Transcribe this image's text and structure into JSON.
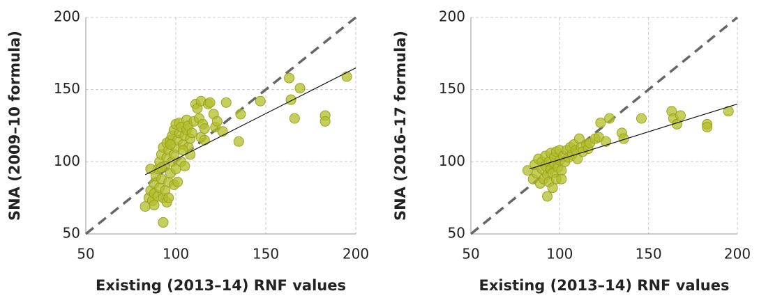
{
  "chart_data": [
    {
      "type": "scatter",
      "x_label": "Existing (2013–14) RNF values",
      "y_label": "SNA (2009–10 formula)",
      "color": "#b3bd2b",
      "xlim": [
        50,
        200
      ],
      "ylim": [
        50,
        200
      ],
      "xticks": [
        50,
        100,
        150,
        200
      ],
      "yticks": [
        50,
        100,
        150,
        200
      ],
      "grid": true,
      "x": [
        83,
        85,
        86,
        87,
        88,
        88,
        89,
        90,
        90,
        91,
        91,
        92,
        92,
        93,
        93,
        93,
        94,
        94,
        95,
        95,
        95,
        96,
        96,
        97,
        97,
        98,
        98,
        99,
        99,
        99,
        100,
        100,
        100,
        101,
        101,
        102,
        102,
        103,
        103,
        104,
        105,
        105,
        106,
        106,
        107,
        107,
        108,
        108,
        109,
        110,
        111,
        112,
        113,
        114,
        114,
        115,
        116,
        116,
        118,
        119,
        121,
        122,
        123,
        126,
        128,
        135,
        136,
        147,
        163,
        164,
        166,
        169,
        183,
        183,
        195,
        86,
        88,
        92,
        96,
        97,
        104
      ],
      "values": [
        69,
        75,
        80,
        73,
        78,
        85,
        90,
        76,
        95,
        82,
        100,
        88,
        105,
        75,
        110,
        58,
        80,
        97,
        72,
        103,
        113,
        86,
        108,
        92,
        115,
        100,
        118,
        84,
        105,
        122,
        95,
        110,
        126,
        86,
        115,
        120,
        127,
        100,
        124,
        112,
        97,
        118,
        122,
        129,
        110,
        125,
        105,
        116,
        120,
        128,
        140,
        137,
        130,
        117,
        142,
        126,
        123,
        115,
        140,
        141,
        133,
        124,
        128,
        121,
        141,
        114,
        133,
        142,
        158,
        143,
        130,
        151,
        132,
        128,
        159,
        95,
        70,
        96,
        75,
        112,
        108
      ],
      "trendline": {
        "x": [
          83,
          200
        ],
        "y": [
          91,
          165
        ]
      }
    },
    {
      "type": "scatter",
      "x_label": "Existing (2013–14) RNF values",
      "y_label": "SNA (2016–17 formula)",
      "color": "#b3bd2b",
      "xlim": [
        50,
        200
      ],
      "ylim": [
        50,
        200
      ],
      "xticks": [
        50,
        100,
        150,
        200
      ],
      "yticks": [
        50,
        100,
        150,
        200
      ],
      "grid": true,
      "x": [
        82,
        85,
        86,
        87,
        88,
        89,
        90,
        90,
        91,
        92,
        92,
        93,
        93,
        94,
        94,
        95,
        95,
        96,
        96,
        97,
        97,
        98,
        98,
        99,
        100,
        100,
        101,
        101,
        102,
        103,
        104,
        105,
        106,
        107,
        108,
        109,
        110,
        111,
        112,
        113,
        115,
        116,
        117,
        120,
        122,
        123,
        126,
        128,
        135,
        136,
        146,
        163,
        164,
        166,
        168,
        183,
        183,
        195
      ],
      "values": [
        94,
        88,
        98,
        92,
        102,
        85,
        95,
        100,
        88,
        104,
        97,
        91,
        76,
        86,
        100,
        95,
        106,
        82,
        92,
        99,
        103,
        88,
        107,
        96,
        101,
        108,
        94,
        88,
        104,
        100,
        108,
        103,
        110,
        105,
        112,
        108,
        102,
        116,
        110,
        107,
        112,
        109,
        113,
        116,
        117,
        127,
        114,
        130,
        120,
        116,
        130,
        135,
        130,
        126,
        132,
        126,
        124,
        135
      ],
      "trendline": {
        "x": [
          83,
          200
        ],
        "y": [
          95,
          140
        ]
      }
    }
  ]
}
